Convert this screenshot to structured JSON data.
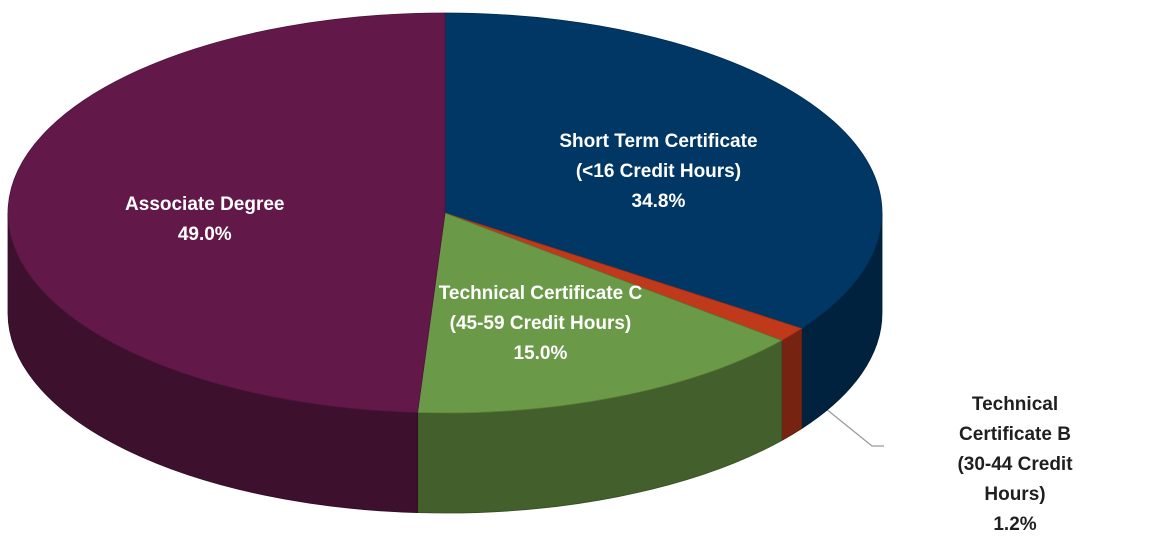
{
  "chart_data": {
    "type": "pie",
    "categories": [
      "Short Term Certificate\n(<16 Credit Hours)",
      "Technical Certificate B\n(30-44 Credit Hours)",
      "Technical Certificate C\n(45-59 Credit Hours)",
      "Associate Degree"
    ],
    "values": [
      34.8,
      1.2,
      15.0,
      49.0
    ],
    "value_labels": [
      "34.8%",
      "1.2%",
      "15.0%",
      "49.0%"
    ],
    "colors": [
      "#003764",
      "#c0391b",
      "#6a9a47",
      "#62194a"
    ]
  }
}
